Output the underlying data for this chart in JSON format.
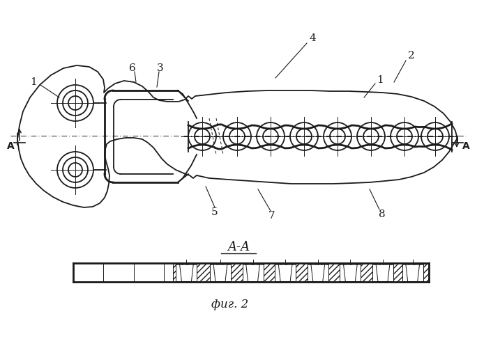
{
  "bg_color": "#ffffff",
  "line_color": "#1a1a1a",
  "fig_label": "фиг. 2",
  "aa_label": "A-A"
}
